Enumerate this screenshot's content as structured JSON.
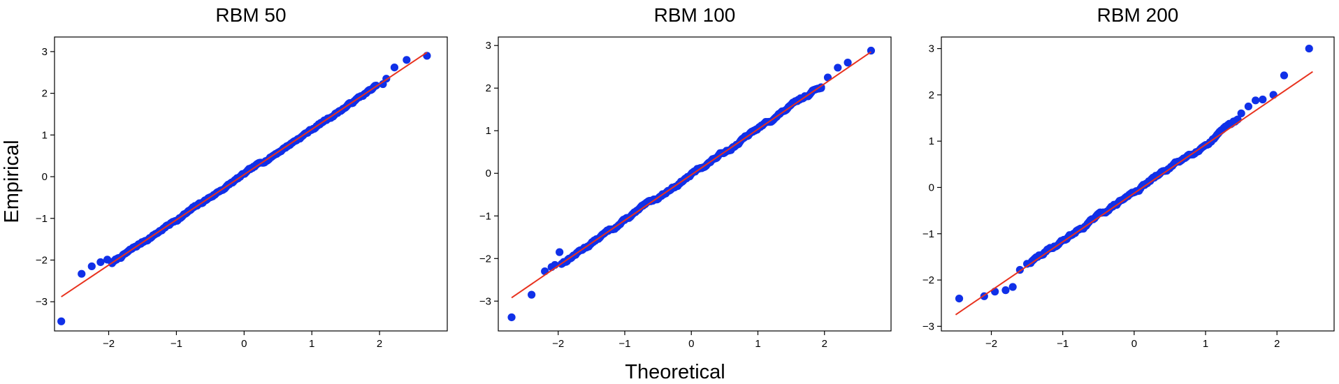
{
  "figure": {
    "xlabel": "Theoretical",
    "ylabel": "Empirical"
  },
  "colors": {
    "points": "#1030e8",
    "fit_line": "#e8321e"
  },
  "chart_data": [
    {
      "type": "scatter",
      "title": "RBM 50",
      "xlim": [
        -2.8,
        3.0
      ],
      "ylim": [
        -3.7,
        3.35
      ],
      "xticks": [
        -2,
        -1,
        0,
        1,
        2
      ],
      "yticks": [
        -3,
        -2,
        -1,
        0,
        1,
        2,
        3
      ],
      "fit_line": {
        "x": [
          -2.7,
          2.7
        ],
        "y": [
          -2.88,
          2.98
        ]
      },
      "tail_low": {
        "x": [
          -2.7,
          -2.4,
          -2.25,
          -2.12,
          -2.02
        ],
        "y": [
          -3.47,
          -2.33,
          -2.15,
          -2.05,
          -1.99
        ]
      },
      "tail_high": {
        "x": [
          2.05,
          2.1,
          2.22,
          2.4,
          2.7
        ],
        "y": [
          2.22,
          2.35,
          2.62,
          2.8,
          2.9
        ]
      },
      "body": {
        "n": 240,
        "seed": 7,
        "x0": -1.95,
        "x1": 1.95,
        "slope": 1.085,
        "intercept": 0.05,
        "noise": 0.04
      }
    },
    {
      "type": "scatter",
      "title": "RBM 100",
      "xlim": [
        -2.9,
        3.0
      ],
      "ylim": [
        -3.7,
        3.2
      ],
      "xticks": [
        -2,
        -1,
        0,
        1,
        2
      ],
      "yticks": [
        -3,
        -2,
        -1,
        0,
        1,
        2,
        3
      ],
      "fit_line": {
        "x": [
          -2.7,
          2.7
        ],
        "y": [
          -2.92,
          2.85
        ]
      },
      "tail_low": {
        "x": [
          -2.7,
          -2.4,
          -2.2,
          -2.1,
          -2.05,
          -1.98
        ],
        "y": [
          -3.38,
          -2.85,
          -2.3,
          -2.2,
          -2.15,
          -1.85
        ]
      },
      "tail_high": {
        "x": [
          1.95,
          2.05,
          2.2,
          2.35,
          2.7
        ],
        "y": [
          2.02,
          2.25,
          2.48,
          2.6,
          2.88
        ]
      },
      "body": {
        "n": 240,
        "seed": 13,
        "x0": -1.95,
        "x1": 1.95,
        "slope": 1.07,
        "intercept": -0.03,
        "noise": 0.045
      }
    },
    {
      "type": "scatter",
      "title": "RBM 200",
      "xlim": [
        -2.7,
        2.8
      ],
      "ylim": [
        -3.1,
        3.25
      ],
      "xticks": [
        -2,
        -1,
        0,
        1,
        2
      ],
      "yticks": [
        -3,
        -2,
        -1,
        0,
        1,
        2,
        3
      ],
      "fit_line": {
        "x": [
          -2.5,
          2.5
        ],
        "y": [
          -2.75,
          2.5
        ]
      },
      "tail_low": {
        "x": [
          -2.45,
          -2.1,
          -1.95,
          -1.8,
          -1.7,
          -1.6,
          -1.5
        ],
        "y": [
          -2.4,
          -2.35,
          -2.25,
          -2.22,
          -2.15,
          -1.78,
          -1.65
        ]
      },
      "tail_high": {
        "x": [
          1.5,
          1.6,
          1.7,
          1.8,
          1.95,
          2.1,
          2.45
        ],
        "y": [
          1.6,
          1.75,
          1.88,
          1.9,
          2.0,
          2.42,
          3.0
        ]
      },
      "body": {
        "n": 150,
        "seed": 29,
        "x0": -1.45,
        "x1": 1.45,
        "slope": 1.05,
        "intercept": -0.1,
        "noise": 0.05
      }
    }
  ]
}
